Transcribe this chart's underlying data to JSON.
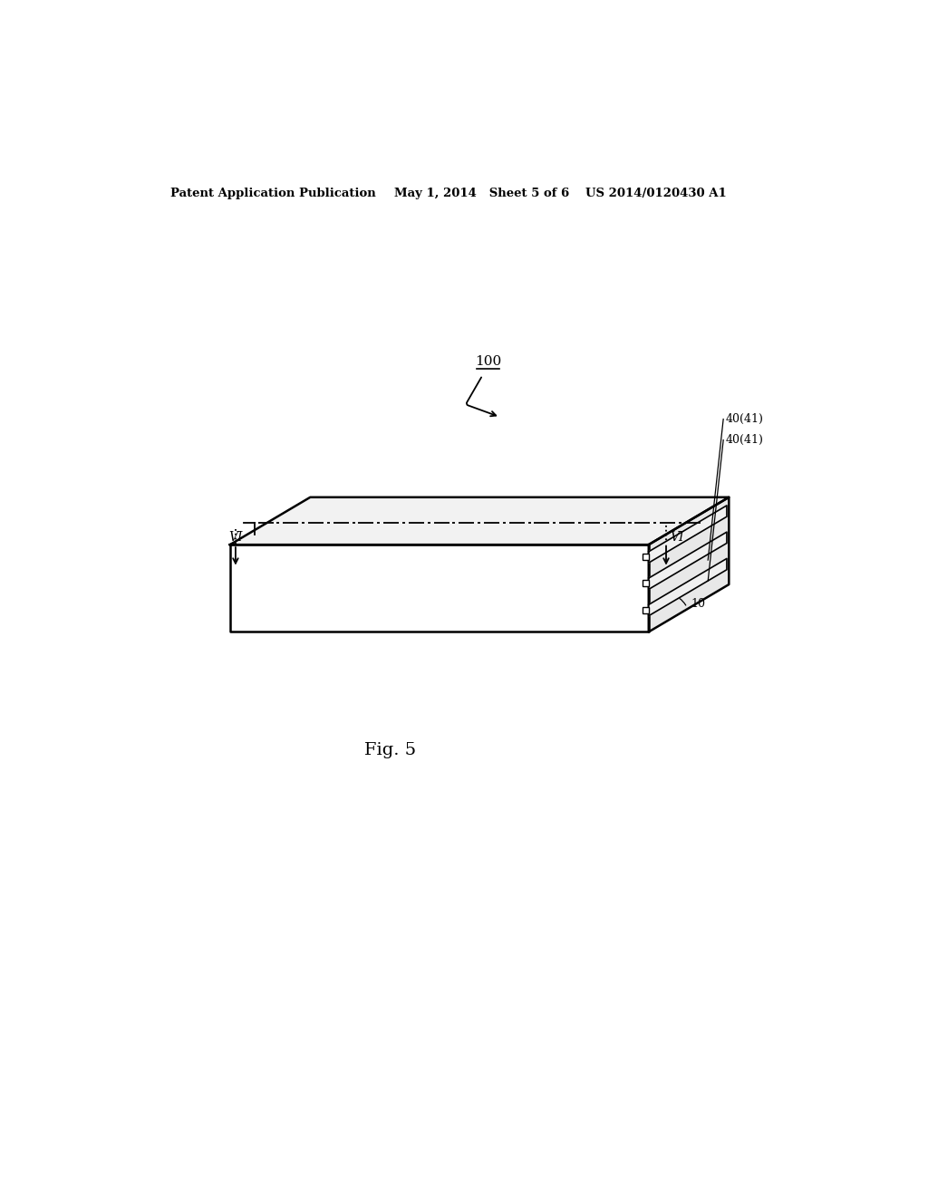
{
  "bg_color": "#ffffff",
  "header_left": "Patent Application Publication",
  "header_mid": "May 1, 2014   Sheet 5 of 6",
  "header_right": "US 2014/0120430 A1",
  "fig_label": "Fig. 5",
  "label_100": "100",
  "label_10": "10",
  "label_40_41_top": "40(41)",
  "label_40_41_bot": "40(41)",
  "label_VI_left": "VI",
  "label_VI_right": "VI",
  "line_color": "#000000",
  "face_color_top": "#f2f2f2",
  "face_color_front": "#ffffff",
  "face_color_right": "#e8e8e8"
}
